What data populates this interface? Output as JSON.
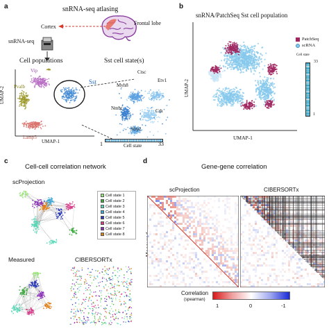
{
  "panels": {
    "a": {
      "letter": "a",
      "title": "snRNA-seq atlasing",
      "frontal_lobe": "Frontal lobe",
      "cortex": "Cortex",
      "snrna_seq": "snRNA-seq",
      "cell_populations": "Cell populations",
      "sst_states": "Sst cell state(s)",
      "umap_x": "UMAP-1",
      "umap_y": "UMAP-2",
      "clusters": [
        "Vip",
        "Pvalb",
        "Sst",
        "Lamp5"
      ],
      "genes": [
        "Ctsc",
        "Etv1",
        "Myh8",
        "Nmbr",
        "Crh",
        "Sfrp2"
      ],
      "cell_state_label": "Cell state",
      "cell_state_min": "1",
      "cell_state_max": "33",
      "colors": {
        "vip": "#b86ec4",
        "pvalb": "#9e9a2e",
        "sst": "#4a8fd6",
        "lamp5": "#d9736b",
        "brain_purple": "#8a3fa0",
        "brain_red": "#d83a2c"
      }
    },
    "b": {
      "letter": "b",
      "title": "snRNA/PatchSeq Sst cell population",
      "legend": [
        "PatchSeq",
        "scRNA"
      ],
      "cell_state_label": "Cell state",
      "cell_state_min": "1",
      "cell_state_max": "33",
      "umap_x": "UMAP-1",
      "umap_y": "UMAP-2",
      "colors": {
        "patchseq": "#a02860",
        "scrna": "#86c8ec"
      }
    },
    "c": {
      "letter": "c",
      "title": "Cell-cell correlation network",
      "scprojection": "scProjection",
      "measured": "Measured",
      "cibersortx": "CIBERSORTx",
      "legend": [
        {
          "label": "Cell state 1",
          "color": "#9be57a"
        },
        {
          "label": "Cell state 2",
          "color": "#3aa83a"
        },
        {
          "label": "Cell state 3",
          "color": "#5ad8b8"
        },
        {
          "label": "Cell state 4",
          "color": "#3aa8d8"
        },
        {
          "label": "Cell state 5",
          "color": "#2a3ab8"
        },
        {
          "label": "Cell state 6",
          "color": "#d83a8a"
        },
        {
          "label": "Cell state 7",
          "color": "#8a2ab8"
        },
        {
          "label": "Cell state 8",
          "color": "#e0801a"
        }
      ]
    },
    "d": {
      "letter": "d",
      "title": "Gene-gene correlation",
      "scprojection": "scProjection",
      "cibersortx": "CIBERSORTx",
      "measured": "Measured",
      "colorbar_title": "Correlation",
      "colorbar_subtitle": "(spearman)",
      "colorbar_ticks": [
        "1",
        "0",
        "-1"
      ]
    }
  }
}
